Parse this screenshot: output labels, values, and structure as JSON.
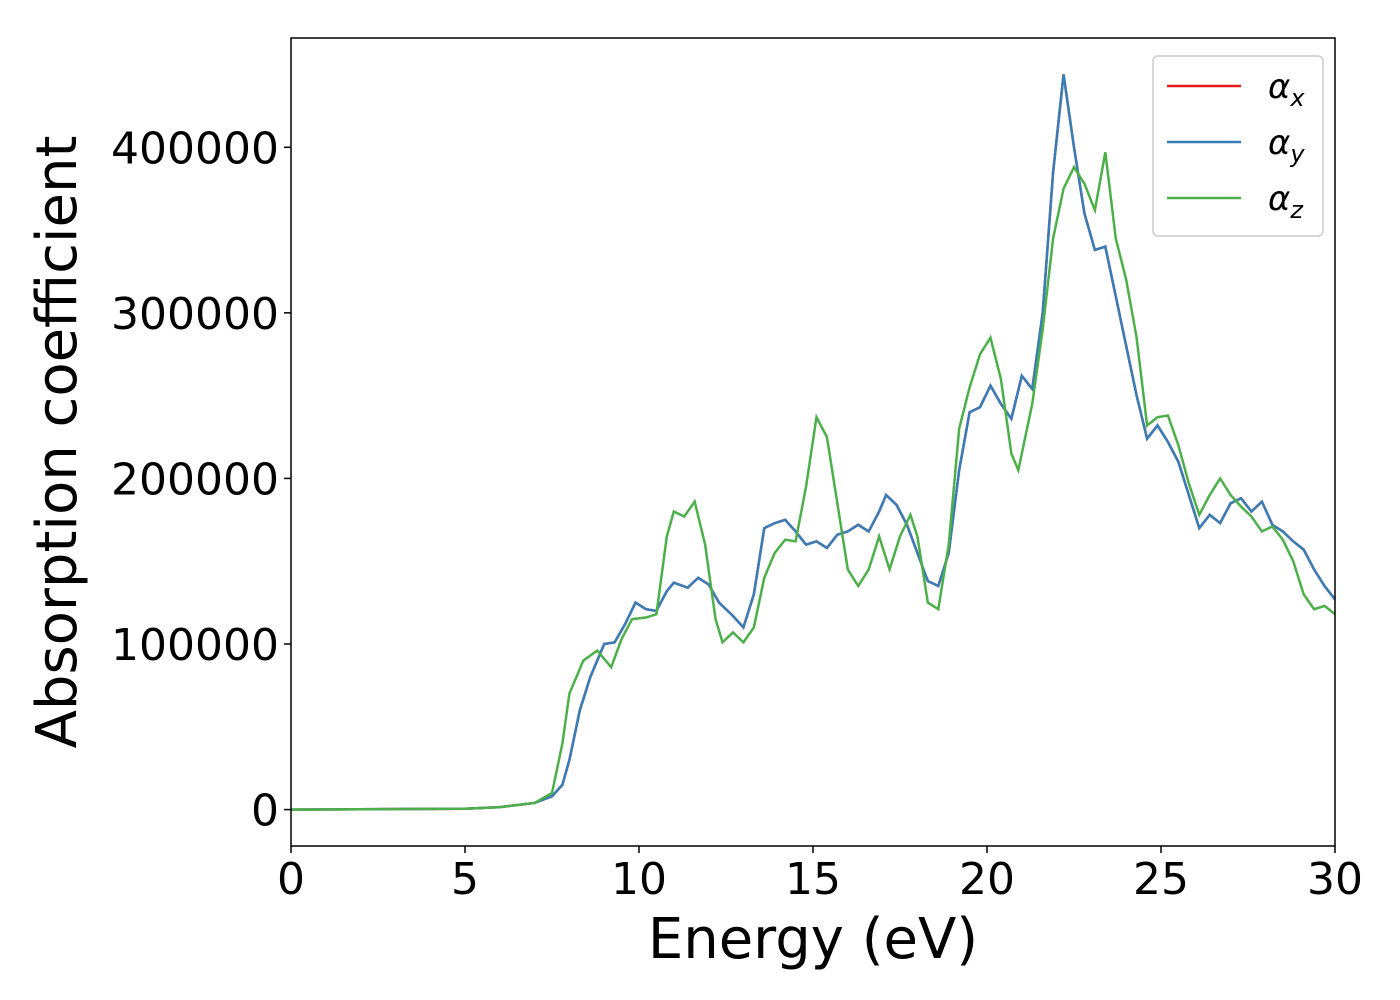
{
  "chart_data": {
    "type": "line",
    "xlabel": "Energy (eV)",
    "ylabel": "Absorption coefficient",
    "xlim": [
      0,
      30
    ],
    "xticks": [
      0,
      5,
      10,
      15,
      20,
      25,
      30
    ],
    "ylim": [
      -22000,
      466000
    ],
    "yticks": [
      0,
      100000,
      200000,
      300000,
      400000
    ],
    "legend": "upper right",
    "series": [
      {
        "name": "αx",
        "color": "#e41a1c",
        "x": [
          0,
          5,
          6,
          7,
          7.5,
          7.8,
          8,
          8.3,
          8.6,
          9,
          9.3,
          9.6,
          9.9,
          10.2,
          10.5,
          10.8,
          11,
          11.4,
          11.7,
          12,
          12.3,
          12.7,
          13,
          13.3,
          13.6,
          13.9,
          14.2,
          14.5,
          14.8,
          15.1,
          15.4,
          15.7,
          16,
          16.3,
          16.6,
          16.9,
          17.1,
          17.4,
          17.7,
          18,
          18.3,
          18.6,
          18.9,
          19.2,
          19.5,
          19.8,
          20.1,
          20.4,
          20.7,
          21,
          21.3,
          21.6,
          21.9,
          22.2,
          22.5,
          22.8,
          23.1,
          23.4,
          23.7,
          24,
          24.3,
          24.6,
          24.9,
          25.2,
          25.5,
          25.8,
          26.1,
          26.4,
          26.7,
          27,
          27.3,
          27.6,
          27.9,
          28.2,
          28.5,
          28.8,
          29.1,
          29.4,
          29.7,
          30
        ],
        "values": [
          0,
          500,
          1500,
          4000,
          8000,
          15000,
          30000,
          60000,
          80000,
          100000,
          101000,
          112000,
          125000,
          121000,
          120000,
          132000,
          137000,
          134000,
          140000,
          136000,
          125000,
          117000,
          110000,
          130000,
          170000,
          173000,
          175000,
          168000,
          160000,
          162000,
          158000,
          166000,
          168000,
          172000,
          168000,
          180000,
          190000,
          184000,
          172000,
          155000,
          138000,
          135000,
          155000,
          205000,
          240000,
          243000,
          256000,
          245000,
          236000,
          262000,
          254000,
          300000,
          385000,
          444000,
          400000,
          360000,
          338000,
          340000,
          310000,
          280000,
          250000,
          224000,
          232000,
          222000,
          210000,
          190000,
          170000,
          178000,
          173000,
          185000,
          188000,
          180000,
          186000,
          172000,
          168000,
          162000,
          157000,
          145000,
          135000,
          127000
        ]
      },
      {
        "name": "αy",
        "color": "#377eb8",
        "x": [
          0,
          5,
          6,
          7,
          7.5,
          7.8,
          8,
          8.3,
          8.6,
          9,
          9.3,
          9.6,
          9.9,
          10.2,
          10.5,
          10.8,
          11,
          11.4,
          11.7,
          12,
          12.3,
          12.7,
          13,
          13.3,
          13.6,
          13.9,
          14.2,
          14.5,
          14.8,
          15.1,
          15.4,
          15.7,
          16,
          16.3,
          16.6,
          16.9,
          17.1,
          17.4,
          17.7,
          18,
          18.3,
          18.6,
          18.9,
          19.2,
          19.5,
          19.8,
          20.1,
          20.4,
          20.7,
          21,
          21.3,
          21.6,
          21.9,
          22.2,
          22.5,
          22.8,
          23.1,
          23.4,
          23.7,
          24,
          24.3,
          24.6,
          24.9,
          25.2,
          25.5,
          25.8,
          26.1,
          26.4,
          26.7,
          27,
          27.3,
          27.6,
          27.9,
          28.2,
          28.5,
          28.8,
          29.1,
          29.4,
          29.7,
          30
        ],
        "values": [
          0,
          500,
          1500,
          4000,
          8000,
          15000,
          30000,
          60000,
          80000,
          100000,
          101000,
          112000,
          125000,
          121000,
          120000,
          132000,
          137000,
          134000,
          140000,
          136000,
          125000,
          117000,
          110000,
          130000,
          170000,
          173000,
          175000,
          168000,
          160000,
          162000,
          158000,
          166000,
          168000,
          172000,
          168000,
          180000,
          190000,
          184000,
          172000,
          155000,
          138000,
          135000,
          155000,
          205000,
          240000,
          243000,
          256000,
          245000,
          236000,
          262000,
          254000,
          300000,
          385000,
          444000,
          400000,
          360000,
          338000,
          340000,
          310000,
          280000,
          250000,
          224000,
          232000,
          222000,
          210000,
          190000,
          170000,
          178000,
          173000,
          185000,
          188000,
          180000,
          186000,
          172000,
          168000,
          162000,
          157000,
          145000,
          135000,
          127000
        ]
      },
      {
        "name": "αz",
        "color": "#4daf4a",
        "x": [
          0,
          5,
          6,
          7,
          7.5,
          7.8,
          8,
          8.4,
          8.8,
          9.2,
          9.5,
          9.8,
          10.2,
          10.5,
          10.8,
          11,
          11.3,
          11.6,
          11.9,
          12.2,
          12.4,
          12.7,
          13,
          13.3,
          13.6,
          13.9,
          14.2,
          14.5,
          14.8,
          15.1,
          15.4,
          15.7,
          16,
          16.3,
          16.6,
          16.9,
          17.2,
          17.5,
          17.8,
          18,
          18.3,
          18.6,
          18.9,
          19.2,
          19.5,
          19.8,
          20.1,
          20.4,
          20.7,
          20.9,
          21.3,
          21.6,
          21.9,
          22.2,
          22.5,
          22.8,
          23.1,
          23.4,
          23.7,
          24,
          24.3,
          24.6,
          24.9,
          25.2,
          25.5,
          25.8,
          26.1,
          26.4,
          26.7,
          27,
          27.3,
          27.6,
          27.9,
          28.2,
          28.5,
          28.8,
          29.1,
          29.4,
          29.7,
          30
        ],
        "values": [
          0,
          500,
          1500,
          4000,
          10000,
          40000,
          70000,
          90000,
          96000,
          86000,
          103000,
          115000,
          116000,
          118000,
          165000,
          180000,
          177000,
          186000,
          160000,
          115000,
          101000,
          107000,
          101000,
          110000,
          140000,
          155000,
          163000,
          162000,
          195000,
          237000,
          225000,
          185000,
          145000,
          135000,
          145000,
          165000,
          145000,
          165000,
          178000,
          165000,
          125000,
          121000,
          160000,
          230000,
          255000,
          275000,
          285000,
          260000,
          215000,
          205000,
          245000,
          290000,
          345000,
          375000,
          388000,
          378000,
          362000,
          397000,
          345000,
          320000,
          285000,
          232000,
          237000,
          238000,
          220000,
          197000,
          178000,
          190000,
          200000,
          190000,
          183000,
          177000,
          168000,
          171000,
          163000,
          150000,
          130000,
          121000,
          123000,
          118000
        ]
      }
    ]
  }
}
